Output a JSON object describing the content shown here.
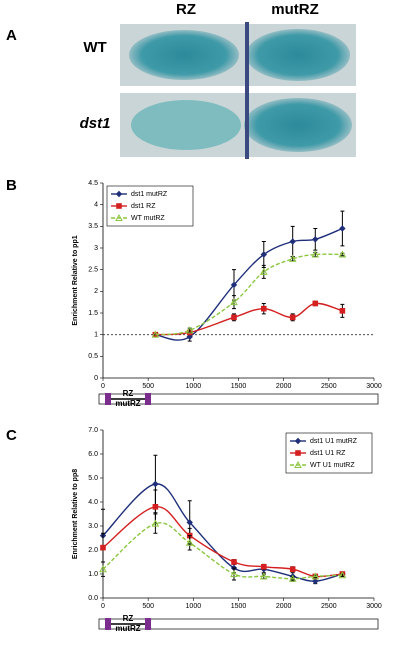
{
  "panel_a": {
    "label": "A",
    "columns": [
      "RZ",
      "mutRZ"
    ],
    "rows": [
      "WT",
      "dst1"
    ]
  },
  "chart_data": [
    {
      "type": "line",
      "panel": "B",
      "y_label": "Enrichment Relative to pp1",
      "x": [
        580,
        960,
        1450,
        1780,
        2100,
        2350,
        2650
      ],
      "xlim": [
        0,
        3000
      ],
      "xticks": [
        0,
        500,
        1000,
        1500,
        2000,
        2500,
        3000
      ],
      "ylim": [
        0,
        4.5
      ],
      "yticks": [
        0,
        0.5,
        1,
        1.5,
        2,
        2.5,
        3,
        3.5,
        4,
        4.5
      ],
      "reference_line": 1,
      "legend": "upper left",
      "diagram_labels": [
        "RZ",
        "mutRZ"
      ],
      "series": [
        {
          "name": "dst1 mutRZ",
          "color": "#1f2f7a",
          "marker": "diamond",
          "dashed": false,
          "values": [
            1.0,
            0.95,
            2.15,
            2.85,
            3.15,
            3.2,
            3.45
          ],
          "errors": [
            0,
            0.1,
            0.35,
            0.3,
            0.35,
            0.25,
            0.4
          ]
        },
        {
          "name": "dst1 RZ",
          "color": "#d42020",
          "marker": "square",
          "dashed": false,
          "values": [
            1.0,
            1.05,
            1.4,
            1.6,
            1.4,
            1.72,
            1.55
          ],
          "errors": [
            0,
            0.05,
            0.08,
            0.12,
            0.08,
            0.05,
            0.15
          ]
        },
        {
          "name": "WT mutRZ",
          "color": "#8cc63f",
          "marker": "triangle",
          "dashed": true,
          "values": [
            1.0,
            1.1,
            1.75,
            2.45,
            2.75,
            2.85,
            2.85
          ],
          "errors": [
            0,
            0.05,
            0.15,
            0.15,
            0.05,
            0.05,
            0.03
          ]
        }
      ]
    },
    {
      "type": "line",
      "panel": "C",
      "y_label": "Enrichment Relative to pp8",
      "x": [
        0,
        580,
        960,
        1450,
        1780,
        2100,
        2350,
        2650
      ],
      "xlim": [
        0,
        3000
      ],
      "xticks": [
        0,
        500,
        1000,
        1500,
        2000,
        2500,
        3000
      ],
      "ylim": [
        0,
        7
      ],
      "yticks": [
        {
          "value": 0,
          "label": "0.0"
        },
        {
          "value": 1,
          "label": "1.0"
        },
        {
          "value": 2,
          "label": "2.0"
        },
        {
          "value": 3,
          "label": "3.0"
        },
        {
          "value": 4,
          "label": "4.0"
        },
        {
          "value": 5,
          "label": "5.0"
        },
        {
          "value": 6,
          "label": "6.0"
        },
        {
          "value": 7,
          "label": "7.0"
        }
      ],
      "legend": "upper right",
      "diagram_labels": [
        "RZ",
        "mutRZ"
      ],
      "series": [
        {
          "name": "dst1 U1 mutRZ",
          "color": "#1f2f7a",
          "marker": "diamond",
          "dashed": false,
          "values": [
            2.6,
            4.75,
            3.15,
            1.25,
            1.2,
            0.9,
            0.7,
            1.0
          ],
          "errors": [
            1.1,
            1.2,
            0.9,
            0.2,
            0.15,
            0.15,
            0.1,
            0.05
          ]
        },
        {
          "name": "dst1 U1 RZ",
          "color": "#d42020",
          "marker": "square",
          "dashed": false,
          "values": [
            2.1,
            3.8,
            2.6,
            1.5,
            1.3,
            1.2,
            0.9,
            1.0
          ],
          "errors": [
            0.6,
            0.7,
            0.3,
            0.1,
            0.1,
            0.1,
            0.05,
            0.05
          ]
        },
        {
          "name": "WT U1 mutRZ",
          "color": "#8cc63f",
          "marker": "triangle",
          "dashed": true,
          "values": [
            1.2,
            3.1,
            2.3,
            1.0,
            0.9,
            0.8,
            0.9,
            0.95
          ],
          "errors": [
            0.3,
            0.4,
            0.3,
            0.25,
            0.1,
            0.1,
            0.05,
            0.05
          ]
        }
      ]
    }
  ]
}
